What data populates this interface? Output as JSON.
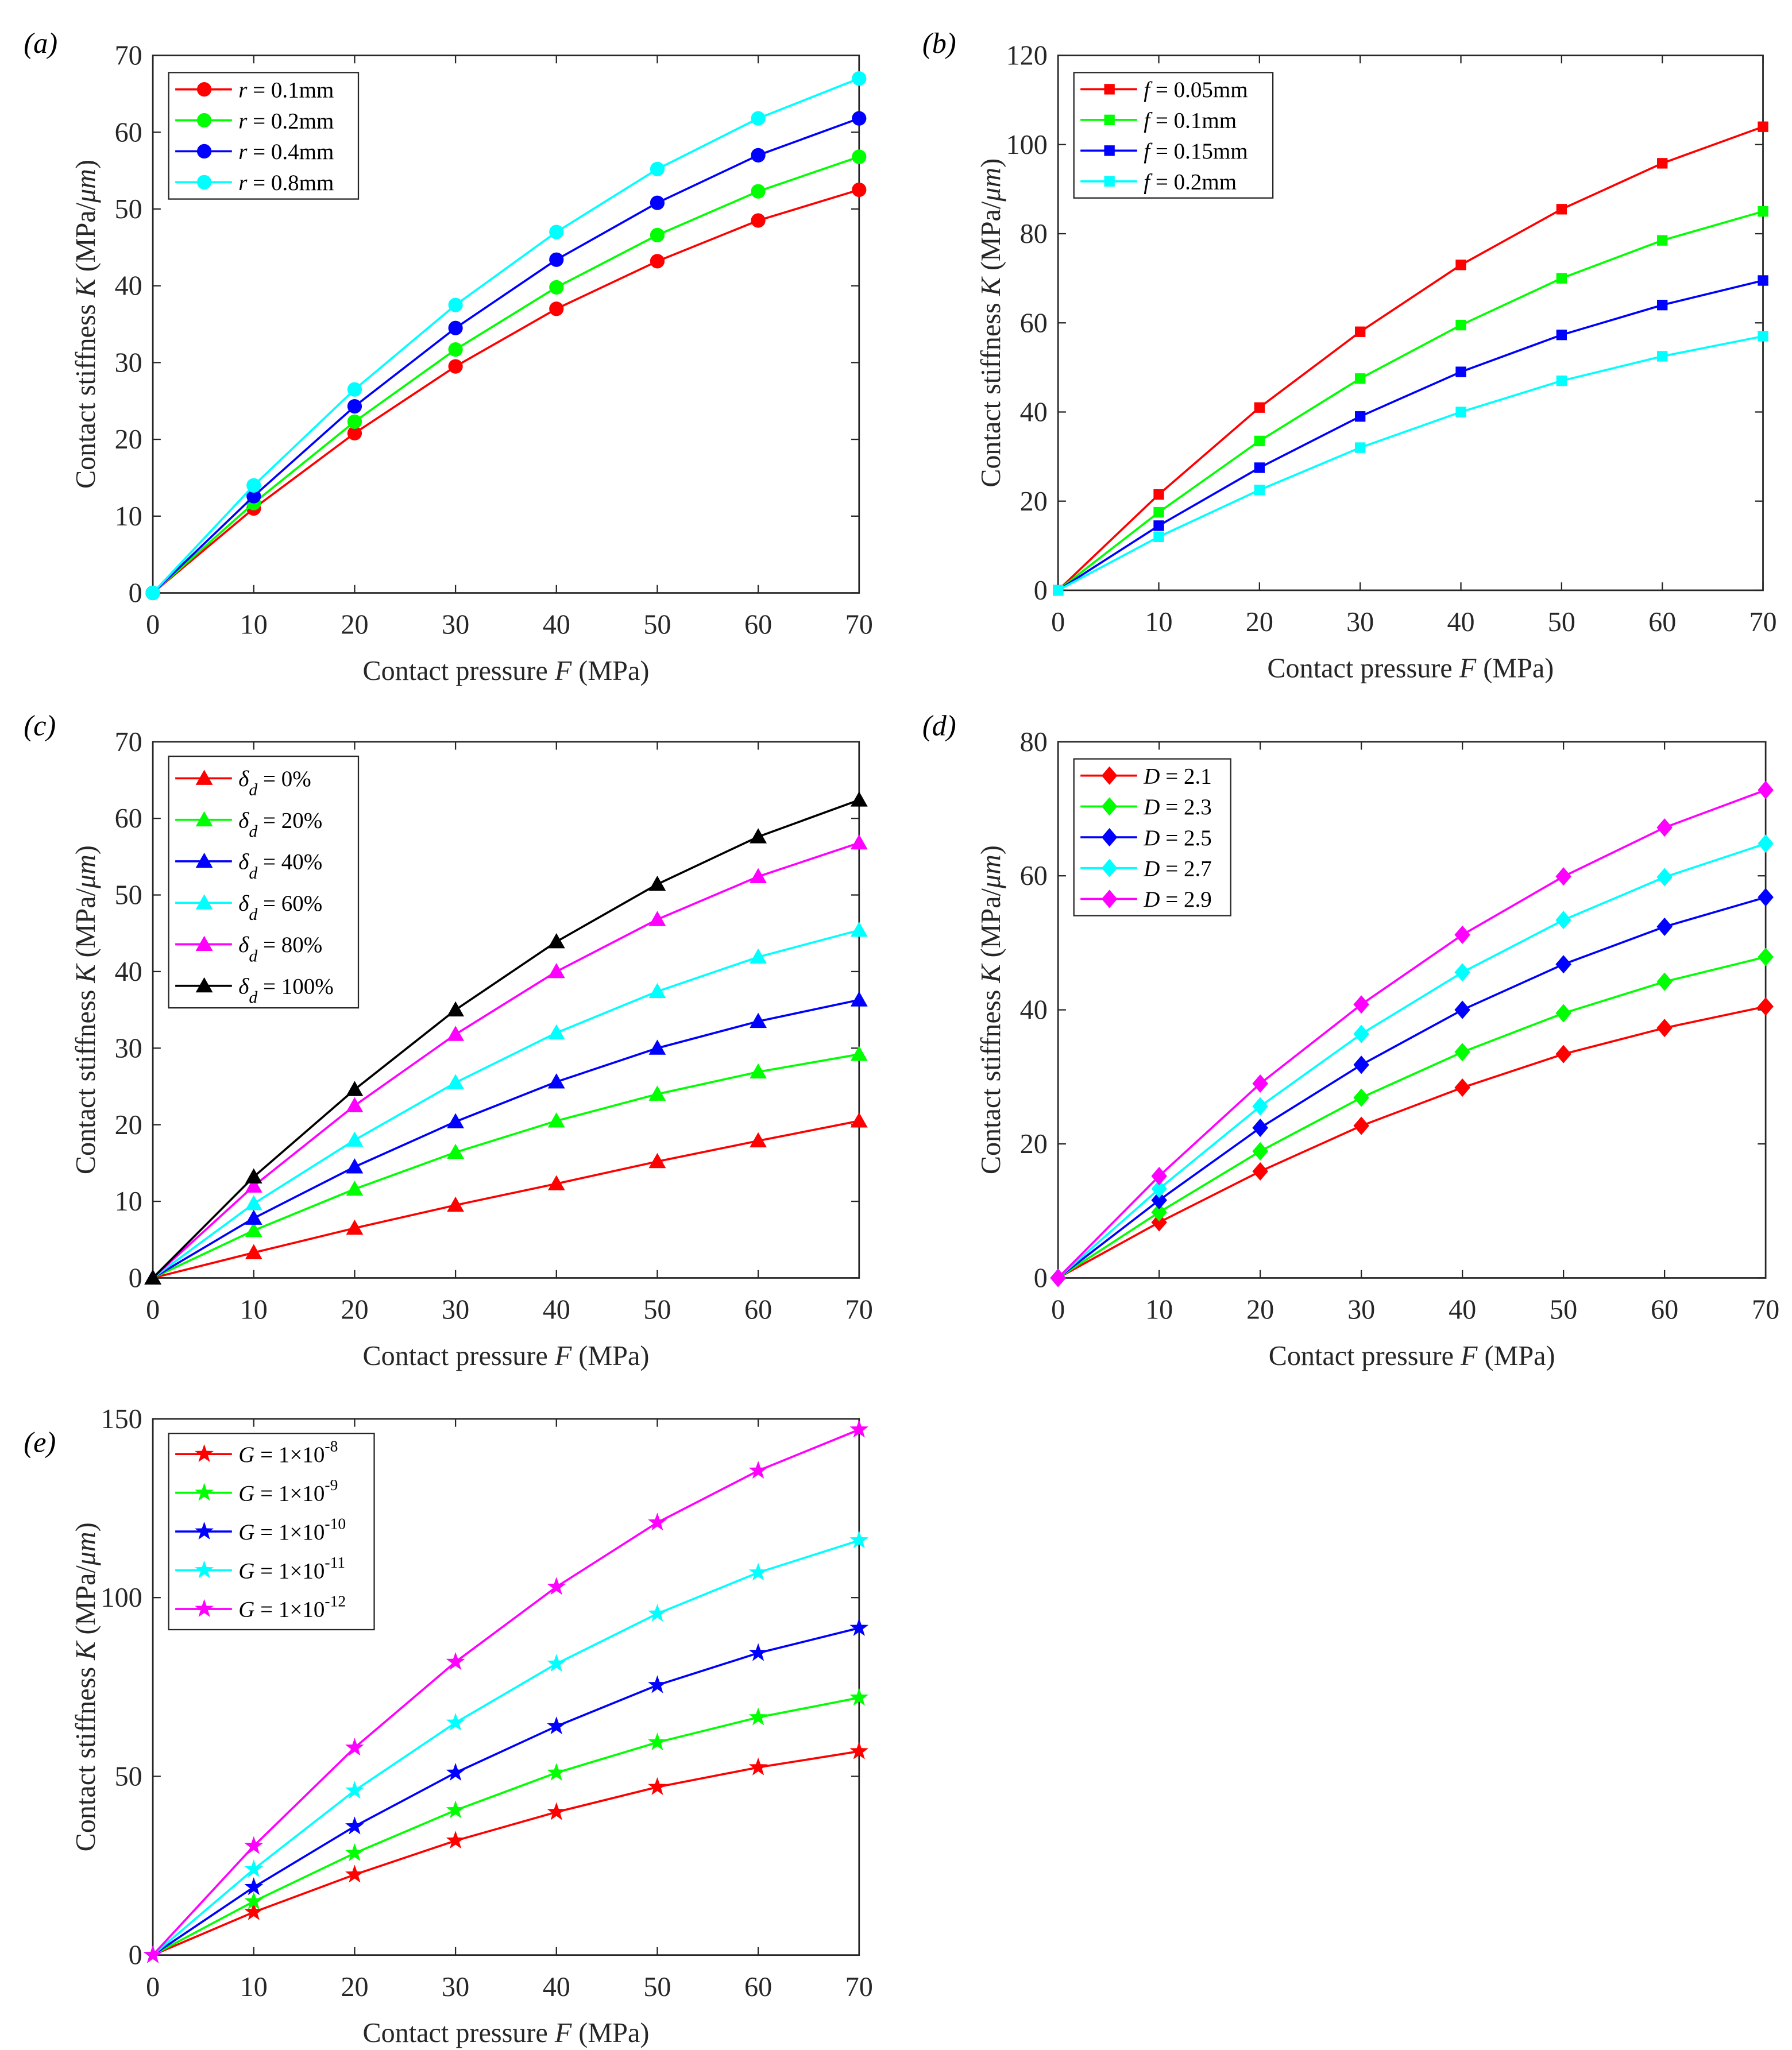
{
  "common": {
    "xlabel": [
      {
        "t": "Contact pressure "
      },
      {
        "t": "F",
        "i": true
      },
      {
        "t": " (MPa)"
      }
    ],
    "ylabel": [
      {
        "t": "Contact stiffness "
      },
      {
        "t": "K",
        "i": true
      },
      {
        "t": " (MPa/"
      },
      {
        "t": "μm",
        "i": true
      },
      {
        "t": ")"
      }
    ]
  },
  "chart_data": [
    {
      "panel": "(a)",
      "type": "line",
      "marker": "circle",
      "xlim": [
        0,
        70
      ],
      "ylim": [
        0,
        70
      ],
      "xticks": [
        0,
        10,
        20,
        30,
        40,
        50,
        60,
        70
      ],
      "yticks": [
        0,
        10,
        20,
        30,
        40,
        50,
        60,
        70
      ],
      "xlabel": "Contact pressure F (MPa)",
      "ylabel": "Contact stiffness K (MPa/μm)",
      "legend_position": "top-left",
      "x": [
        0,
        10,
        20,
        30,
        40,
        50,
        60,
        70
      ],
      "series": [
        {
          "name": "r = 0.1mm",
          "var": "r",
          "label": " = 0.1mm",
          "color": "#ff0000",
          "values": [
            0,
            11,
            20.8,
            29.5,
            37,
            43.2,
            48.5,
            52.5
          ]
        },
        {
          "name": "r = 0.2mm",
          "var": "r",
          "label": " = 0.2mm",
          "color": "#00ff00",
          "values": [
            0,
            11.7,
            22.3,
            31.7,
            39.8,
            46.6,
            52.3,
            56.8
          ]
        },
        {
          "name": "r = 0.4mm",
          "var": "r",
          "label": " = 0.4mm",
          "color": "#0000ff",
          "values": [
            0,
            12.6,
            24.3,
            34.5,
            43.4,
            50.8,
            57,
            61.8
          ]
        },
        {
          "name": "r = 0.8mm",
          "var": "r",
          "label": " = 0.8mm",
          "color": "#00ffff",
          "values": [
            0,
            14,
            26.5,
            37.5,
            47,
            55.2,
            61.8,
            67
          ]
        }
      ]
    },
    {
      "panel": "(b)",
      "type": "line",
      "marker": "square",
      "xlim": [
        0,
        70
      ],
      "ylim": [
        0,
        120
      ],
      "xticks": [
        0,
        10,
        20,
        30,
        40,
        50,
        60,
        70
      ],
      "yticks": [
        0,
        20,
        40,
        60,
        80,
        100,
        120
      ],
      "xlabel": "Contact pressure F (MPa)",
      "ylabel": "Contact stiffness K (MPa/μm)",
      "legend_position": "top-left",
      "x": [
        0,
        10,
        20,
        30,
        40,
        50,
        60,
        70
      ],
      "series": [
        {
          "name": "f = 0.05mm",
          "var": "f",
          "label": " = 0.05mm",
          "color": "#ff0000",
          "values": [
            0,
            21.5,
            41,
            58,
            73,
            85.5,
            95.8,
            104
          ]
        },
        {
          "name": "f = 0.1mm",
          "var": "f",
          "label": " = 0.1mm",
          "color": "#00ff00",
          "values": [
            0,
            17.5,
            33.5,
            47.5,
            59.5,
            70,
            78.5,
            85
          ]
        },
        {
          "name": "f = 0.15mm",
          "var": "f",
          "label": " = 0.15mm",
          "color": "#0000ff",
          "values": [
            0,
            14.5,
            27.5,
            39,
            49,
            57.3,
            64,
            69.5
          ]
        },
        {
          "name": "f = 0.2mm",
          "var": "f",
          "label": " = 0.2mm",
          "color": "#00ffff",
          "values": [
            0,
            12,
            22.5,
            32,
            40,
            47,
            52.5,
            57
          ]
        }
      ]
    },
    {
      "panel": "(c)",
      "type": "line",
      "marker": "triangle",
      "xlim": [
        0,
        70
      ],
      "ylim": [
        0,
        70
      ],
      "xticks": [
        0,
        10,
        20,
        30,
        40,
        50,
        60,
        70
      ],
      "yticks": [
        0,
        10,
        20,
        30,
        40,
        50,
        60,
        70
      ],
      "xlabel": "Contact pressure F (MPa)",
      "ylabel": "Contact stiffness K (MPa/μm)",
      "legend_position": "top-left",
      "x": [
        0,
        10,
        20,
        30,
        40,
        50,
        60,
        70
      ],
      "series": [
        {
          "name": "δd = 0%",
          "var": "δ",
          "sub": "d",
          "label": " = 0%",
          "color": "#ff0000",
          "values": [
            0,
            3.3,
            6.5,
            9.5,
            12.3,
            15.2,
            17.9,
            20.5
          ]
        },
        {
          "name": "δd = 20%",
          "var": "δ",
          "sub": "d",
          "label": " = 20%",
          "color": "#00ff00",
          "values": [
            0,
            6.2,
            11.6,
            16.4,
            20.5,
            24,
            26.9,
            29.2
          ]
        },
        {
          "name": "δd = 40%",
          "var": "δ",
          "sub": "d",
          "label": " = 40%",
          "color": "#0000ff",
          "values": [
            0,
            7.8,
            14.5,
            20.4,
            25.6,
            30,
            33.5,
            36.3
          ]
        },
        {
          "name": "δd = 60%",
          "var": "δ",
          "sub": "d",
          "label": " = 60%",
          "color": "#00ffff",
          "values": [
            0,
            9.7,
            18,
            25.5,
            32,
            37.4,
            41.9,
            45.4
          ]
        },
        {
          "name": "δd = 80%",
          "var": "δ",
          "sub": "d",
          "label": " = 80%",
          "color": "#ff00ff",
          "values": [
            0,
            12,
            22.5,
            31.8,
            40,
            46.8,
            52.4,
            56.8
          ]
        },
        {
          "name": "δd = 100%",
          "var": "δ",
          "sub": "d",
          "label": " = 100%",
          "color": "#000000",
          "values": [
            0,
            13.2,
            24.6,
            35,
            43.9,
            51.4,
            57.6,
            62.4
          ]
        }
      ]
    },
    {
      "panel": "(d)",
      "type": "line",
      "marker": "diamond",
      "xlim": [
        0,
        70
      ],
      "ylim": [
        0,
        80
      ],
      "xticks": [
        0,
        10,
        20,
        30,
        40,
        50,
        60,
        70
      ],
      "yticks": [
        0,
        20,
        40,
        60,
        80
      ],
      "xlabel": "Contact pressure F (MPa)",
      "ylabel": "Contact stiffness K (MPa/μm)",
      "legend_position": "top-left",
      "x": [
        0,
        10,
        20,
        30,
        40,
        50,
        60,
        70
      ],
      "series": [
        {
          "name": "D = 2.1",
          "var": "D",
          "label": " = 2.1",
          "color": "#ff0000",
          "values": [
            0,
            8.3,
            15.9,
            22.7,
            28.4,
            33.4,
            37.3,
            40.5
          ]
        },
        {
          "name": "D = 2.3",
          "var": "D",
          "label": " = 2.3",
          "color": "#00ff00",
          "values": [
            0,
            9.8,
            18.9,
            26.9,
            33.7,
            39.5,
            44.2,
            47.9
          ]
        },
        {
          "name": "D = 2.5",
          "var": "D",
          "label": " = 2.5",
          "color": "#0000ff",
          "values": [
            0,
            11.6,
            22.4,
            31.8,
            40,
            46.8,
            52.4,
            56.8
          ]
        },
        {
          "name": "D = 2.7",
          "var": "D",
          "label": " = 2.7",
          "color": "#00ffff",
          "values": [
            0,
            13.3,
            25.6,
            36.4,
            45.6,
            53.4,
            59.8,
            64.8
          ]
        },
        {
          "name": "D = 2.9",
          "var": "D",
          "label": " = 2.9",
          "color": "#ff00ff",
          "values": [
            0,
            15.2,
            29,
            40.8,
            51.2,
            59.9,
            67.2,
            72.8
          ]
        }
      ]
    },
    {
      "panel": "(e)",
      "type": "line",
      "marker": "star",
      "xlim": [
        0,
        70
      ],
      "ylim": [
        0,
        150
      ],
      "xticks": [
        0,
        10,
        20,
        30,
        40,
        50,
        60,
        70
      ],
      "yticks": [
        0,
        50,
        100,
        150
      ],
      "xlabel": "Contact pressure F (MPa)",
      "ylabel": "Contact stiffness K (MPa/μm)",
      "legend_position": "top-left",
      "x": [
        0,
        10,
        20,
        30,
        40,
        50,
        60,
        70
      ],
      "series": [
        {
          "name": "G = 1×10^-8",
          "var": "G",
          "label": " = 1×10",
          "sup": "-8",
          "color": "#ff0000",
          "values": [
            0,
            12,
            22.5,
            32,
            40,
            47,
            52.5,
            57
          ]
        },
        {
          "name": "G = 1×10^-9",
          "var": "G",
          "label": " = 1×10",
          "sup": "-9",
          "color": "#00ff00",
          "values": [
            0,
            15,
            28.5,
            40.5,
            51,
            59.5,
            66.5,
            72
          ]
        },
        {
          "name": "G = 1×10^-10",
          "var": "G",
          "label": " = 1×10",
          "sup": "-10",
          "color": "#0000ff",
          "values": [
            0,
            19,
            36,
            51,
            64,
            75.5,
            84.5,
            91.5
          ]
        },
        {
          "name": "G = 1×10^-11",
          "var": "G",
          "label": " = 1×10",
          "sup": "-11",
          "color": "#00ffff",
          "values": [
            0,
            24,
            46,
            65,
            81.5,
            95.5,
            107,
            116
          ]
        },
        {
          "name": "G = 1×10^-12",
          "var": "G",
          "label": " = 1×10",
          "sup": "-12",
          "color": "#ff00ff",
          "values": [
            0,
            30.5,
            58,
            82,
            103,
            121,
            135.5,
            147
          ]
        }
      ]
    }
  ]
}
